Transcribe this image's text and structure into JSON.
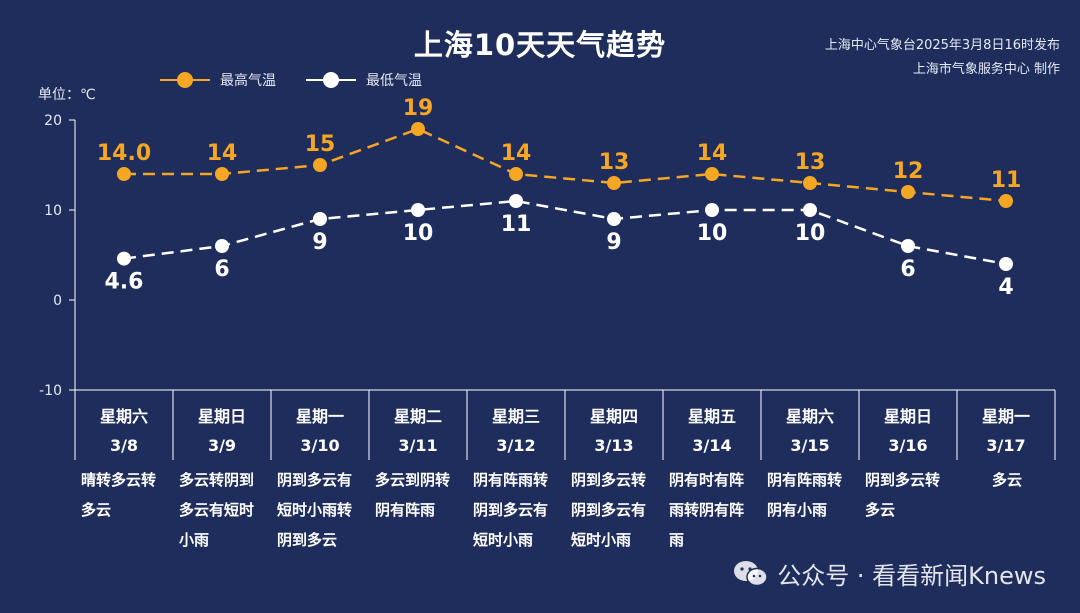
{
  "title": "上海10天天气趋势",
  "source_line1": "上海中心气象台2025年3月8日16时发布",
  "source_line2": "上海市气象服务中心 制作",
  "unit_label": "单位：℃",
  "watermark_text": "公众号 · 看看新闻Knews",
  "chart_data": {
    "type": "line",
    "ylim": [
      -10,
      20
    ],
    "yticks": [
      "20",
      "10",
      "0",
      "-10"
    ],
    "categories": [
      {
        "weekday": "星期六",
        "date": "3/8"
      },
      {
        "weekday": "星期日",
        "date": "3/9"
      },
      {
        "weekday": "星期一",
        "date": "3/10"
      },
      {
        "weekday": "星期二",
        "date": "3/11"
      },
      {
        "weekday": "星期三",
        "date": "3/12"
      },
      {
        "weekday": "星期四",
        "date": "3/13"
      },
      {
        "weekday": "星期五",
        "date": "3/14"
      },
      {
        "weekday": "星期六",
        "date": "3/15"
      },
      {
        "weekday": "星期日",
        "date": "3/16"
      },
      {
        "weekday": "星期一",
        "date": "3/17"
      }
    ],
    "series": [
      {
        "name": "最高气温",
        "color": "#f5a623",
        "values": [
          14.0,
          14,
          15,
          19,
          14,
          13,
          14,
          13,
          12,
          11
        ],
        "labels": [
          "14.0",
          "14",
          "15",
          "19",
          "14",
          "13",
          "14",
          "13",
          "12",
          "11"
        ]
      },
      {
        "name": "最低气温",
        "color": "#ffffff",
        "values": [
          4.6,
          6,
          9,
          10,
          11,
          9,
          10,
          10,
          6,
          4
        ],
        "labels": [
          "4.6",
          "6",
          "9",
          "10",
          "11",
          "9",
          "10",
          "10",
          "6",
          "4"
        ]
      }
    ],
    "descriptions": [
      "晴转多云转多云",
      "多云转阴到多云有短时小雨",
      "阴到多云有短时小雨转阴到多云",
      "多云到阴转阴有阵雨",
      "阴有阵雨转阴到多云有短时小雨",
      "阴到多云转阴到多云有短时小雨",
      "阴有时有阵雨转阴有阵雨",
      "阴有阵雨转阴有小雨",
      "阴到多云转多云",
      "多云"
    ]
  }
}
